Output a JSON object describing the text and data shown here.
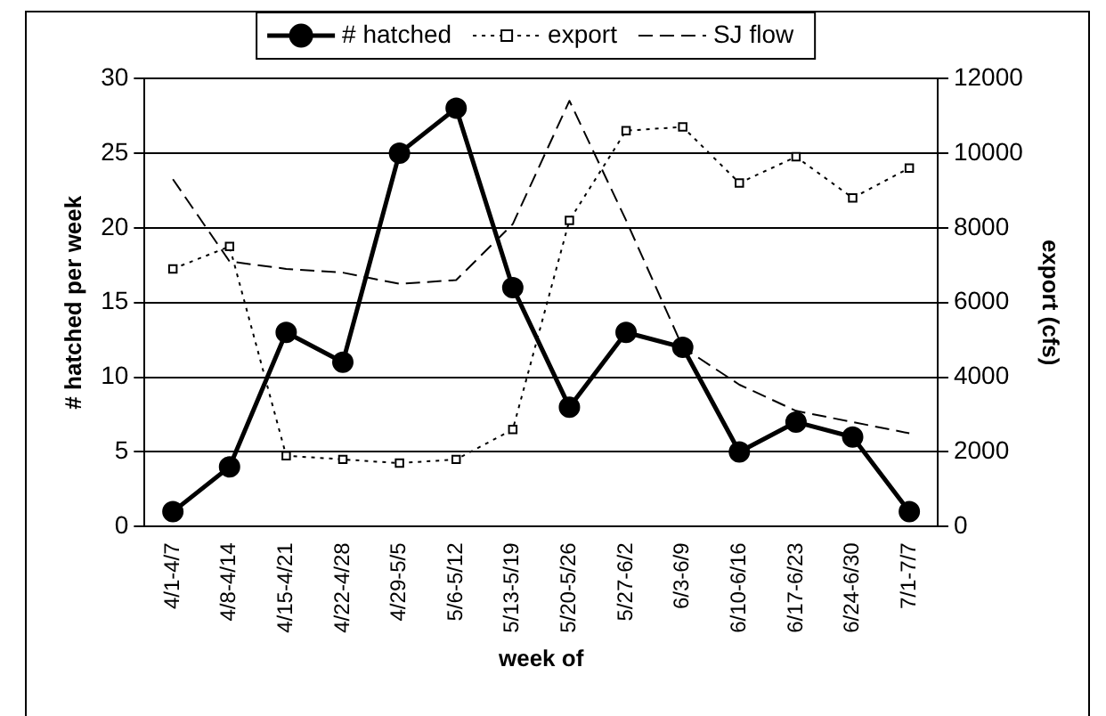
{
  "chart_data": {
    "type": "line",
    "xlabel": "week of",
    "ylabel": "# hatched per week",
    "y2label": "export (cfs)",
    "categories": [
      "4/1-4/7",
      "4/8-4/14",
      "4/15-4/21",
      "4/22-4/28",
      "4/29-5/5",
      "5/6-5/12",
      "5/13-5/19",
      "5/20-5/26",
      "5/27-6/2",
      "6/3-6/9",
      "6/10-6/16",
      "6/17-6/23",
      "6/24-6/30",
      "7/1-7/7"
    ],
    "series": [
      {
        "name": "# hatched",
        "color": "#000000",
        "marker": "circle",
        "line_style": "solid",
        "values": [
          1,
          4,
          13,
          11,
          25,
          28,
          16,
          8,
          13,
          12,
          5,
          7,
          6,
          1
        ]
      },
      {
        "name": "export",
        "color": "#000000",
        "marker": "square",
        "line_style": "dotted",
        "axis": "y2",
        "values": [
          6900,
          7500,
          1900,
          1800,
          1700,
          1800,
          2600,
          8200,
          10600,
          10700,
          9200,
          9900,
          8800,
          9600
        ]
      },
      {
        "name": "SJ flow",
        "color": "#000000",
        "marker": "none",
        "line_style": "dashed",
        "axis": "y2",
        "values": [
          9300,
          7100,
          6900,
          6800,
          6500,
          6600,
          8100,
          11400,
          8200,
          4800,
          3800,
          3100,
          2800,
          2500
        ]
      }
    ],
    "ylim": [
      0,
      30
    ],
    "yticks": [
      0,
      5,
      10,
      15,
      20,
      25,
      30
    ],
    "y2lim": [
      0,
      12000
    ],
    "y2ticks": [
      0,
      2000,
      4000,
      6000,
      8000,
      10000,
      12000
    ],
    "grid": "y",
    "legend": "top"
  }
}
